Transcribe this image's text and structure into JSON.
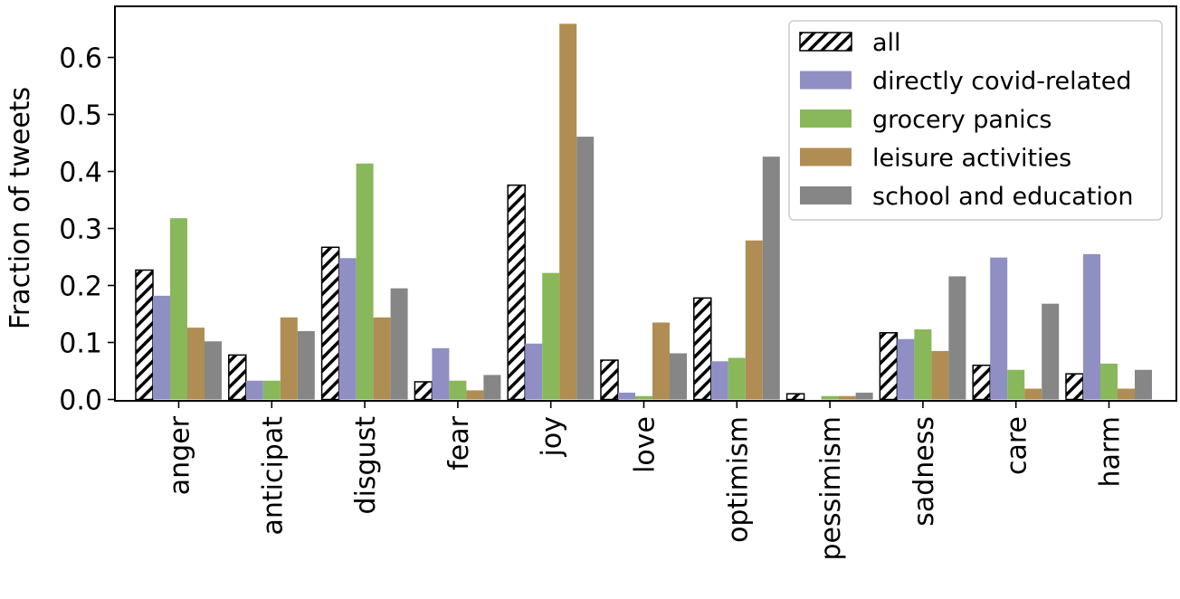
{
  "chart_data": {
    "type": "bar",
    "title": "",
    "xlabel": "",
    "ylabel": "Fraction of tweets",
    "ylim": [
      0,
      0.7
    ],
    "yticks": [
      "0.0",
      "0.1",
      "0.2",
      "0.3",
      "0.4",
      "0.5",
      "0.6"
    ],
    "categories": [
      "anger",
      "anticipat",
      "disgust",
      "fear",
      "joy",
      "love",
      "optimism",
      "pessimism",
      "sadness",
      "care",
      "harm"
    ],
    "series": [
      {
        "name": "all",
        "color": "#ffffff",
        "hatch": true,
        "values": [
          0.227,
          0.078,
          0.267,
          0.031,
          0.376,
          0.069,
          0.178,
          0.01,
          0.117,
          0.06,
          0.045
        ]
      },
      {
        "name": "directly covid-related",
        "color": "#8f8fc4",
        "values": [
          0.182,
          0.033,
          0.248,
          0.09,
          0.098,
          0.012,
          0.067,
          0.0,
          0.106,
          0.249,
          0.255
        ]
      },
      {
        "name": "grocery panics",
        "color": "#89b85a",
        "values": [
          0.318,
          0.033,
          0.414,
          0.033,
          0.222,
          0.006,
          0.073,
          0.006,
          0.123,
          0.052,
          0.063
        ]
      },
      {
        "name": "leisure activities",
        "color": "#b08d52",
        "values": [
          0.126,
          0.144,
          0.144,
          0.016,
          0.659,
          0.135,
          0.279,
          0.006,
          0.085,
          0.019,
          0.019
        ]
      },
      {
        "name": "school and education",
        "color": "#868686",
        "values": [
          0.102,
          0.12,
          0.195,
          0.043,
          0.461,
          0.081,
          0.426,
          0.012,
          0.216,
          0.168,
          0.052
        ]
      }
    ],
    "legend_position": "top-right",
    "grid": false
  }
}
